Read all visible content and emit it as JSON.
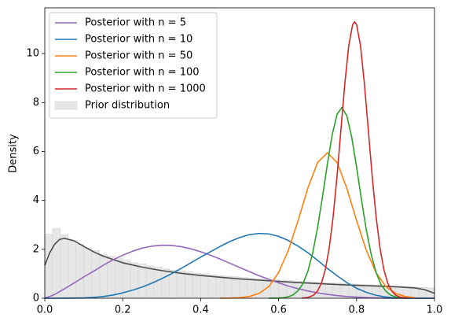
{
  "chart_data": {
    "type": "line",
    "ylabel": "Density",
    "xlim": [
      0,
      1
    ],
    "ylim": [
      0,
      11.87
    ],
    "xticks": [
      {
        "value": 0,
        "label": "0.0"
      },
      0.2,
      0.4,
      0.6,
      0.8,
      {
        "value": 1,
        "label": "1.0"
      }
    ],
    "yticks": [
      0,
      2,
      4,
      6,
      8,
      10
    ],
    "legend": "upper left",
    "histogram": {
      "name": "Prior distribution",
      "color": "#e6e6e6",
      "bins": [
        0,
        0.02,
        0.04,
        0.06,
        0.08,
        0.1,
        0.12,
        0.14,
        0.16,
        0.18,
        0.2,
        0.22,
        0.24,
        0.26,
        0.28,
        0.3,
        0.32,
        0.34,
        0.36,
        0.38,
        0.4,
        0.42,
        0.44,
        0.46,
        0.48,
        0.5,
        0.52,
        0.54,
        0.56,
        0.58,
        0.6,
        0.62,
        0.64,
        0.66,
        0.68,
        0.7,
        0.72,
        0.74,
        0.76,
        0.78,
        0.8,
        0.82,
        0.84,
        0.86,
        0.88,
        0.9,
        0.92,
        0.94,
        0.96,
        0.98,
        1.0
      ],
      "counts": [
        2.62,
        2.85,
        2.6,
        2.35,
        2.2,
        2.05,
        1.95,
        1.8,
        1.72,
        1.62,
        1.55,
        1.45,
        1.4,
        1.32,
        1.28,
        1.2,
        1.15,
        1.12,
        1.08,
        1.02,
        1.0,
        0.96,
        0.93,
        0.9,
        0.88,
        0.85,
        0.82,
        0.8,
        0.78,
        0.76,
        0.74,
        0.72,
        0.7,
        0.68,
        0.67,
        0.65,
        0.63,
        0.62,
        0.6,
        0.58,
        0.57,
        0.55,
        0.54,
        0.52,
        0.5,
        0.49,
        0.47,
        0.46,
        0.44,
        0.42
      ]
    },
    "kde": {
      "color": "#4d4d4d",
      "x": [
        0,
        0.0125,
        0.025,
        0.0375,
        0.05,
        0.075,
        0.1,
        0.125,
        0.15,
        0.2,
        0.25,
        0.3,
        0.35,
        0.4,
        0.45,
        0.5,
        0.55,
        0.6,
        0.65,
        0.7,
        0.75,
        0.8,
        0.85,
        0.9,
        0.95,
        0.975,
        1.0
      ],
      "values": [
        1.35,
        1.85,
        2.2,
        2.4,
        2.45,
        2.35,
        2.12,
        1.9,
        1.72,
        1.45,
        1.27,
        1.13,
        1.02,
        0.93,
        0.86,
        0.79,
        0.74,
        0.69,
        0.64,
        0.6,
        0.56,
        0.53,
        0.5,
        0.47,
        0.42,
        0.35,
        0.2
      ]
    },
    "series": [
      {
        "name": "Posterior with n = 5",
        "color": "#9467bd",
        "x": [
          0,
          0.025,
          0.05,
          0.075,
          0.1,
          0.125,
          0.15,
          0.175,
          0.2,
          0.225,
          0.25,
          0.275,
          0.3,
          0.325,
          0.35,
          0.375,
          0.4,
          0.425,
          0.45,
          0.475,
          0.5,
          0.525,
          0.55,
          0.575,
          0.6,
          0.625,
          0.65,
          0.675,
          0.7,
          0.725,
          0.75,
          0.775,
          0.8,
          0.825,
          0.85,
          0.875,
          0.9,
          0.925,
          0.95,
          0.975,
          1.0
        ],
        "values": [
          0,
          0.15,
          0.38,
          0.62,
          0.87,
          1.1,
          1.35,
          1.57,
          1.76,
          1.92,
          2.05,
          2.13,
          2.17,
          2.16,
          2.11,
          2.02,
          1.9,
          1.76,
          1.6,
          1.43,
          1.26,
          1.09,
          0.92,
          0.77,
          0.63,
          0.5,
          0.39,
          0.3,
          0.22,
          0.16,
          0.11,
          0.07,
          0.045,
          0.027,
          0.015,
          0.007,
          0.003,
          0.001,
          0,
          0,
          0
        ]
      },
      {
        "name": "Posterior with n = 10",
        "color": "#1f77b4",
        "x": [
          0,
          0.025,
          0.05,
          0.075,
          0.1,
          0.125,
          0.15,
          0.175,
          0.2,
          0.225,
          0.25,
          0.275,
          0.3,
          0.325,
          0.35,
          0.375,
          0.4,
          0.425,
          0.45,
          0.475,
          0.5,
          0.525,
          0.55,
          0.575,
          0.6,
          0.625,
          0.65,
          0.675,
          0.7,
          0.725,
          0.75,
          0.775,
          0.8,
          0.825,
          0.85,
          0.875,
          0.9,
          0.925,
          0.95,
          0.975,
          1.0
        ],
        "values": [
          0,
          0,
          0.001,
          0.005,
          0.015,
          0.035,
          0.07,
          0.13,
          0.22,
          0.33,
          0.46,
          0.62,
          0.8,
          1.0,
          1.22,
          1.45,
          1.68,
          1.9,
          2.12,
          2.32,
          2.48,
          2.6,
          2.65,
          2.63,
          2.53,
          2.36,
          2.13,
          1.86,
          1.55,
          1.22,
          0.92,
          0.64,
          0.41,
          0.24,
          0.12,
          0.05,
          0.015,
          0.003,
          0,
          0,
          0
        ]
      },
      {
        "name": "Posterior with n = 50",
        "color": "#ff7f0e",
        "x": [
          0.45,
          0.475,
          0.5,
          0.525,
          0.55,
          0.575,
          0.6,
          0.625,
          0.65,
          0.675,
          0.7,
          0.725,
          0.75,
          0.775,
          0.8,
          0.825,
          0.85,
          0.875,
          0.9,
          0.925,
          0.95
        ],
        "values": [
          0.001,
          0.006,
          0.021,
          0.07,
          0.2,
          0.48,
          1.05,
          1.96,
          3.18,
          4.5,
          5.55,
          5.95,
          5.55,
          4.5,
          3.18,
          1.96,
          1.05,
          0.48,
          0.2,
          0.07,
          0.021
        ]
      },
      {
        "name": "Posterior with n = 100",
        "color": "#2ca02c",
        "x": [
          0.575,
          0.5875,
          0.6,
          0.6125,
          0.625,
          0.6375,
          0.65,
          0.6625,
          0.675,
          0.6875,
          0.7,
          0.7125,
          0.725,
          0.7375,
          0.75,
          0.7625,
          0.775,
          0.7875,
          0.8,
          0.8125,
          0.825,
          0.8375,
          0.85,
          0.8625,
          0.875,
          0.8875,
          0.9,
          0.9125,
          0.925
        ],
        "values": [
          0.001,
          0.003,
          0.009,
          0.024,
          0.061,
          0.14,
          0.31,
          0.6,
          1.1,
          1.86,
          2.89,
          4.14,
          5.47,
          6.68,
          7.52,
          7.8,
          7.46,
          6.59,
          5.37,
          4.04,
          2.8,
          1.79,
          1.06,
          0.57,
          0.29,
          0.13,
          0.057,
          0.022,
          0.008
        ]
      },
      {
        "name": "Posterior with n = 1000",
        "color": "#d62728",
        "x": [
          0.66,
          0.67,
          0.68,
          0.69,
          0.7,
          0.71,
          0.72,
          0.73,
          0.74,
          0.75,
          0.76,
          0.77,
          0.78,
          0.79,
          0.795,
          0.8,
          0.81,
          0.82,
          0.83,
          0.84,
          0.85,
          0.86,
          0.87,
          0.88,
          0.89,
          0.9,
          0.91,
          0.92,
          0.93
        ],
        "values": [
          0.007,
          0.021,
          0.056,
          0.13,
          0.3,
          0.62,
          1.18,
          2.07,
          3.35,
          5.01,
          6.91,
          8.79,
          10.33,
          11.19,
          11.3,
          11.19,
          10.33,
          8.79,
          6.91,
          5.01,
          3.35,
          2.07,
          1.18,
          0.62,
          0.3,
          0.13,
          0.056,
          0.021,
          0.007
        ]
      }
    ]
  }
}
